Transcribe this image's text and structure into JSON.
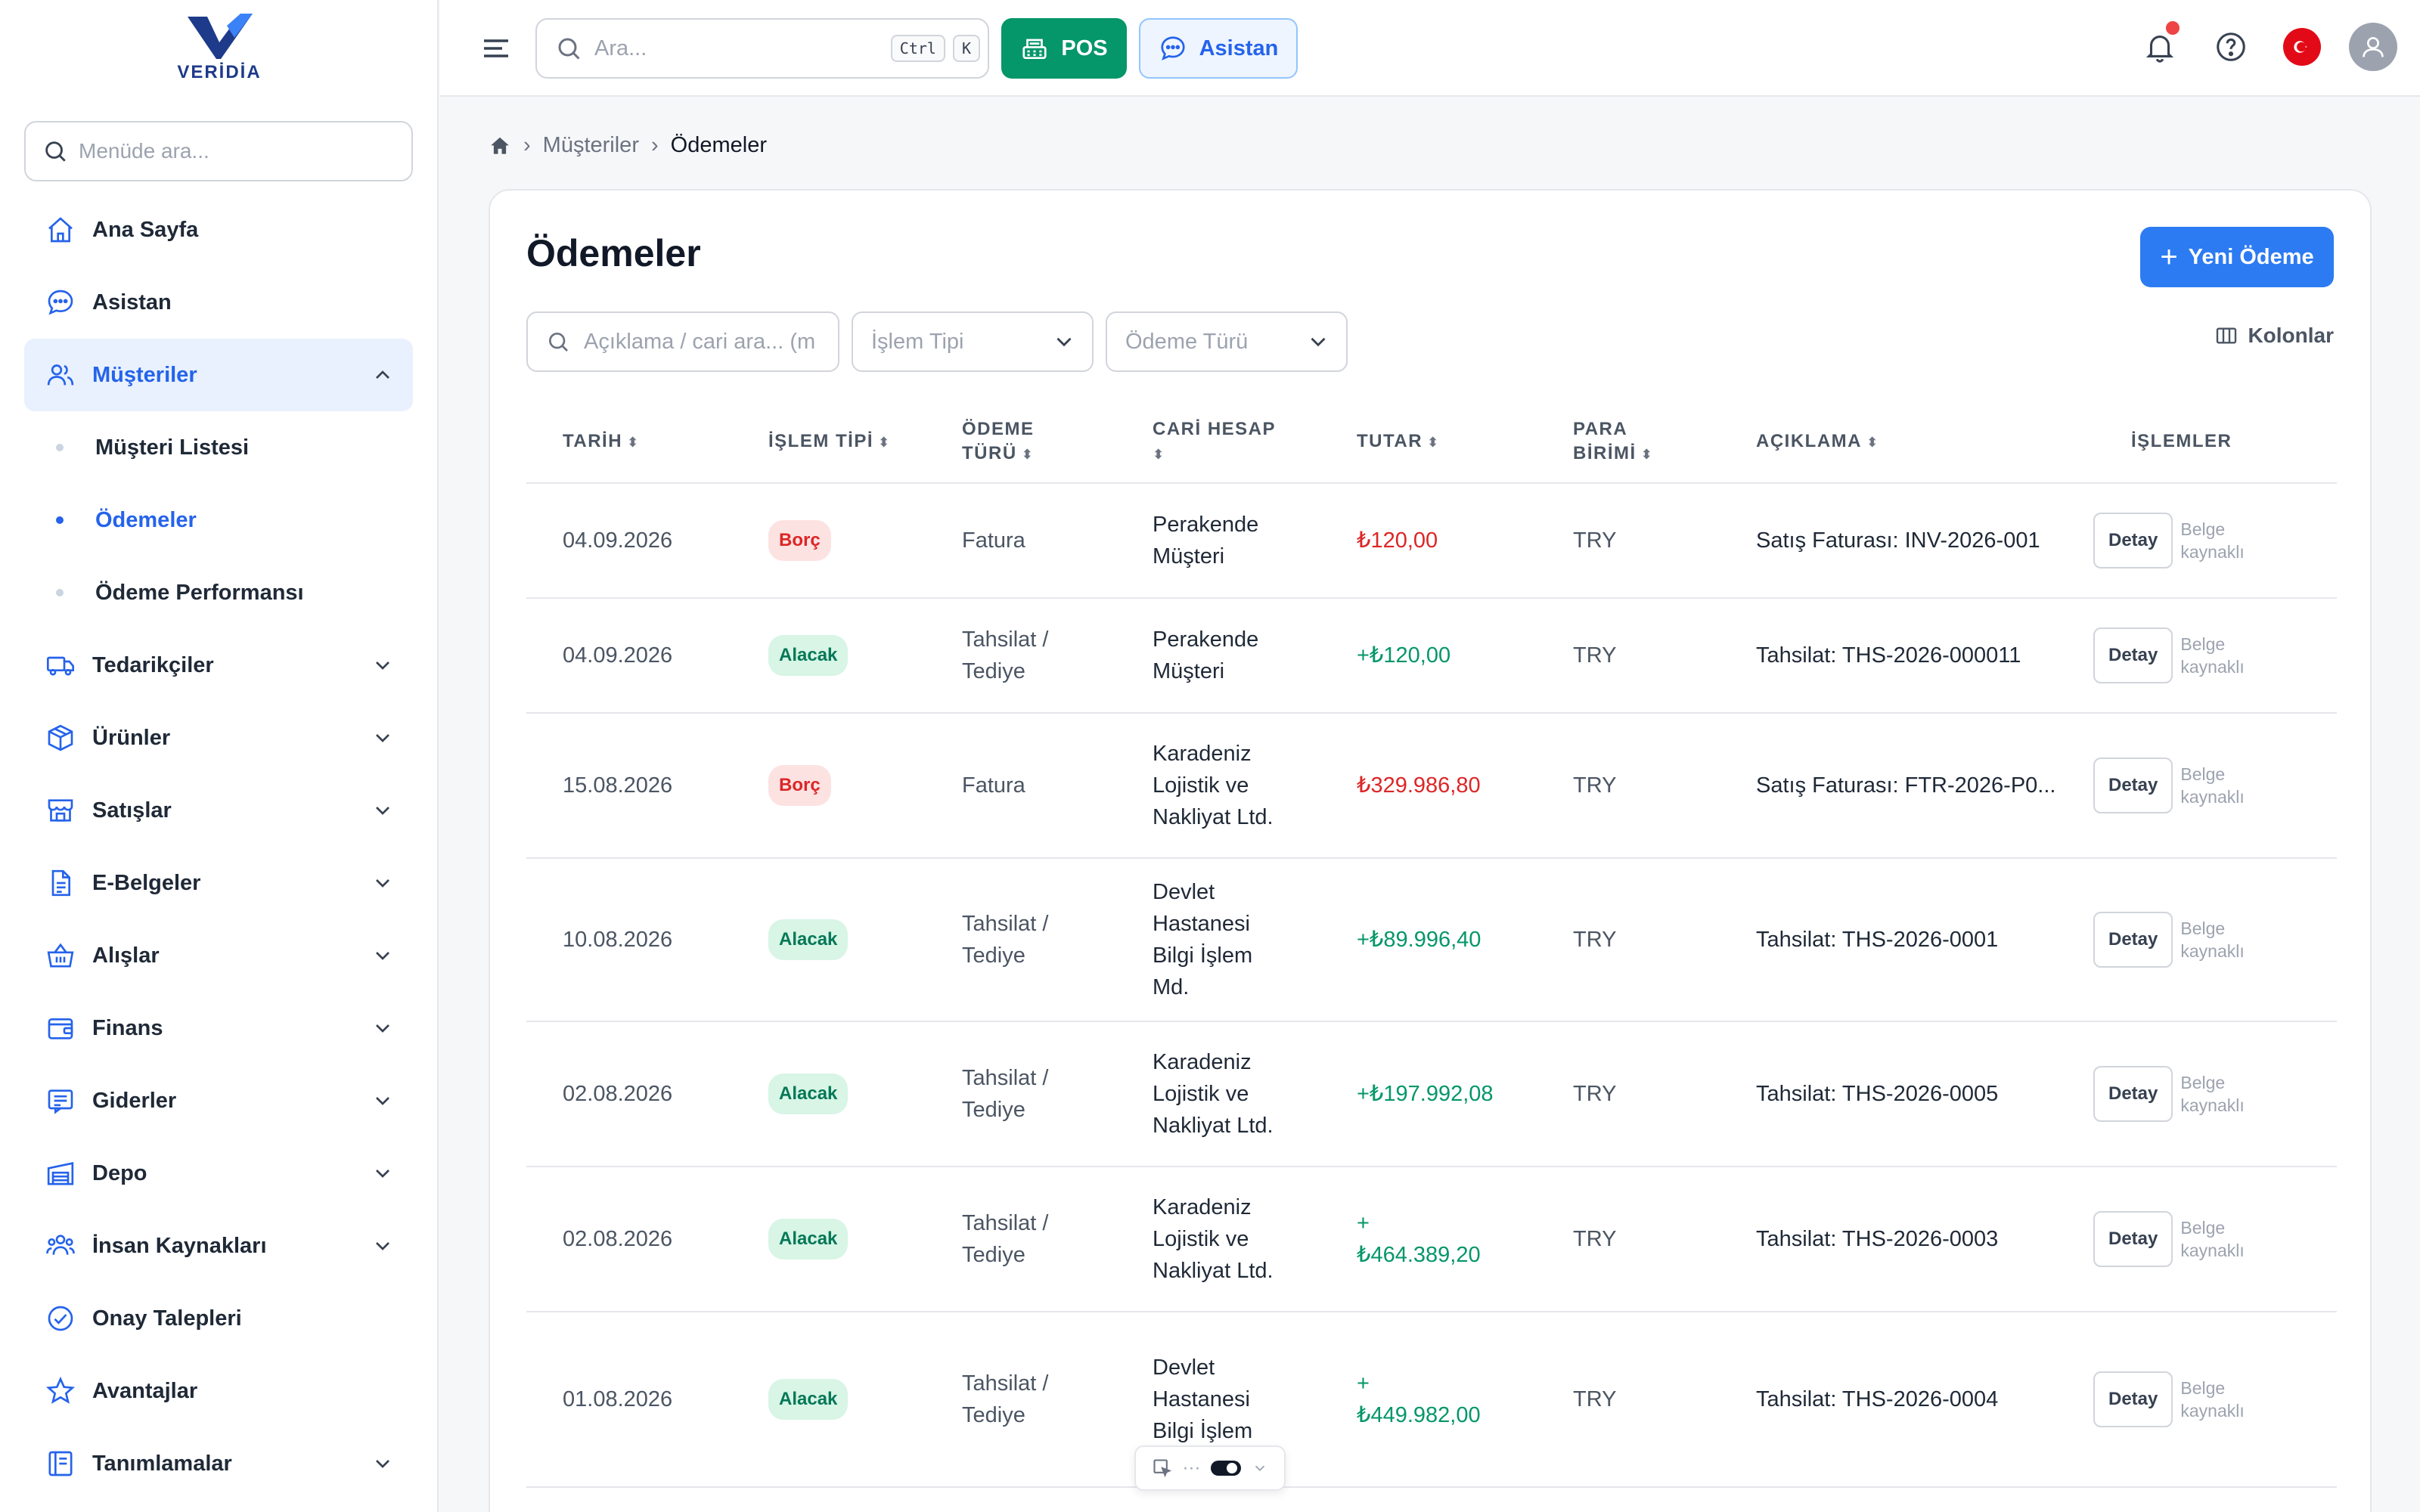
{
  "brand": {
    "logo_text": "VERİDİA"
  },
  "sidebar": {
    "search_placeholder": "Menüde ara...",
    "items": [
      {
        "label": "Ana Sayfa",
        "icon": "home-icon"
      },
      {
        "label": "Asistan",
        "icon": "chat-icon"
      },
      {
        "label": "Müşteriler",
        "icon": "users-icon",
        "expanded": true
      },
      {
        "label": "Tedarikçiler",
        "icon": "truck-icon"
      },
      {
        "label": "Ürünler",
        "icon": "box-icon"
      },
      {
        "label": "Satışlar",
        "icon": "store-icon"
      },
      {
        "label": "E-Belgeler",
        "icon": "document-icon"
      },
      {
        "label": "Alışlar",
        "icon": "basket-icon"
      },
      {
        "label": "Finans",
        "icon": "wallet-icon"
      },
      {
        "label": "Giderler",
        "icon": "receipt-icon"
      },
      {
        "label": "Depo",
        "icon": "warehouse-icon"
      },
      {
        "label": "İnsan Kaynakları",
        "icon": "people-icon"
      },
      {
        "label": "Onay Talepleri",
        "icon": "check-circle-icon"
      },
      {
        "label": "Avantajlar",
        "icon": "star-icon"
      },
      {
        "label": "Tanımlamalar",
        "icon": "list-icon"
      }
    ],
    "sub_items": [
      {
        "label": "Müşteri Listesi"
      },
      {
        "label": "Ödemeler",
        "active": true
      },
      {
        "label": "Ödeme Performansı"
      }
    ]
  },
  "topbar": {
    "search_placeholder": "Ara...",
    "kbd_ctrl": "Ctrl",
    "kbd_k": "K",
    "pos_label": "POS",
    "assistant_label": "Asistan"
  },
  "breadcrumb": {
    "parent": "Müşteriler",
    "current": "Ödemeler"
  },
  "page": {
    "title": "Ödemeler",
    "new_button": "Yeni Ödeme",
    "filter_search_placeholder": "Açıklama / cari ara... (m",
    "filter_type_placeholder": "İşlem Tipi",
    "filter_payment_placeholder": "Ödeme Türü",
    "columns_button": "Kolonlar"
  },
  "table": {
    "headers": {
      "date": "TARİH",
      "type": "İŞLEM TİPİ",
      "payment_1": "ÖDEME",
      "payment_2": "TÜRÜ",
      "account": "CARİ HESAP",
      "amount": "TUTAR",
      "currency_1": "PARA",
      "currency_2": "BİRİMİ",
      "description": "AÇIKLAMA",
      "actions": "İŞLEMLER"
    },
    "detail_label": "Detay",
    "source_label_1": "Belge",
    "source_label_2": "kaynaklı",
    "rows": [
      {
        "date": "04.09.2026",
        "type": "Borç",
        "payment_1": "Fatura",
        "payment_2": "",
        "account_1": "Perakende",
        "account_2": "Müşteri",
        "account_3": "",
        "account_4": "",
        "amount_1": "₺120,00",
        "amount_2": "",
        "currency": "TRY",
        "description": "Satış Faturası: INV-2026-001"
      },
      {
        "date": "04.09.2026",
        "type": "Alacak",
        "payment_1": "Tahsilat /",
        "payment_2": "Tediye",
        "account_1": "Perakende",
        "account_2": "Müşteri",
        "account_3": "",
        "account_4": "",
        "amount_1": "+₺120,00",
        "amount_2": "",
        "currency": "TRY",
        "description": "Tahsilat: THS-2026-000011"
      },
      {
        "date": "15.08.2026",
        "type": "Borç",
        "payment_1": "Fatura",
        "payment_2": "",
        "account_1": "Karadeniz",
        "account_2": "Lojistik ve",
        "account_3": "Nakliyat Ltd.",
        "account_4": "",
        "amount_1": "₺329.986,80",
        "amount_2": "",
        "currency": "TRY",
        "description": "Satış Faturası: FTR-2026-P0..."
      },
      {
        "date": "10.08.2026",
        "type": "Alacak",
        "payment_1": "Tahsilat /",
        "payment_2": "Tediye",
        "account_1": "Devlet",
        "account_2": "Hastanesi",
        "account_3": "Bilgi İşlem",
        "account_4": "Md.",
        "amount_1": "+₺89.996,40",
        "amount_2": "",
        "currency": "TRY",
        "description": "Tahsilat: THS-2026-0001"
      },
      {
        "date": "02.08.2026",
        "type": "Alacak",
        "payment_1": "Tahsilat /",
        "payment_2": "Tediye",
        "account_1": "Karadeniz",
        "account_2": "Lojistik ve",
        "account_3": "Nakliyat Ltd.",
        "account_4": "",
        "amount_1": "+₺197.992,08",
        "amount_2": "",
        "currency": "TRY",
        "description": "Tahsilat: THS-2026-0005"
      },
      {
        "date": "02.08.2026",
        "type": "Alacak",
        "payment_1": "Tahsilat /",
        "payment_2": "Tediye",
        "account_1": "Karadeniz",
        "account_2": "Lojistik ve",
        "account_3": "Nakliyat Ltd.",
        "account_4": "",
        "amount_1": "+",
        "amount_2": "₺464.389,20",
        "currency": "TRY",
        "description": "Tahsilat: THS-2026-0003"
      },
      {
        "date": "01.08.2026",
        "type": "Alacak",
        "payment_1": "Tahsilat /",
        "payment_2": "Tediye",
        "account_1": "Devlet",
        "account_2": "Hastanesi",
        "account_3": "Bilgi İşlem",
        "account_4": "",
        "amount_1": "+",
        "amount_2": "₺449.982,00",
        "currency": "TRY",
        "description": "Tahsilat: THS-2026-0004"
      }
    ]
  },
  "floating_toolbar": {
    "dots": "···"
  },
  "colors": {
    "accent": "#2c7bf2",
    "pos_green": "#059669",
    "debt_red": "#dc2626",
    "credit_green": "#059669"
  }
}
